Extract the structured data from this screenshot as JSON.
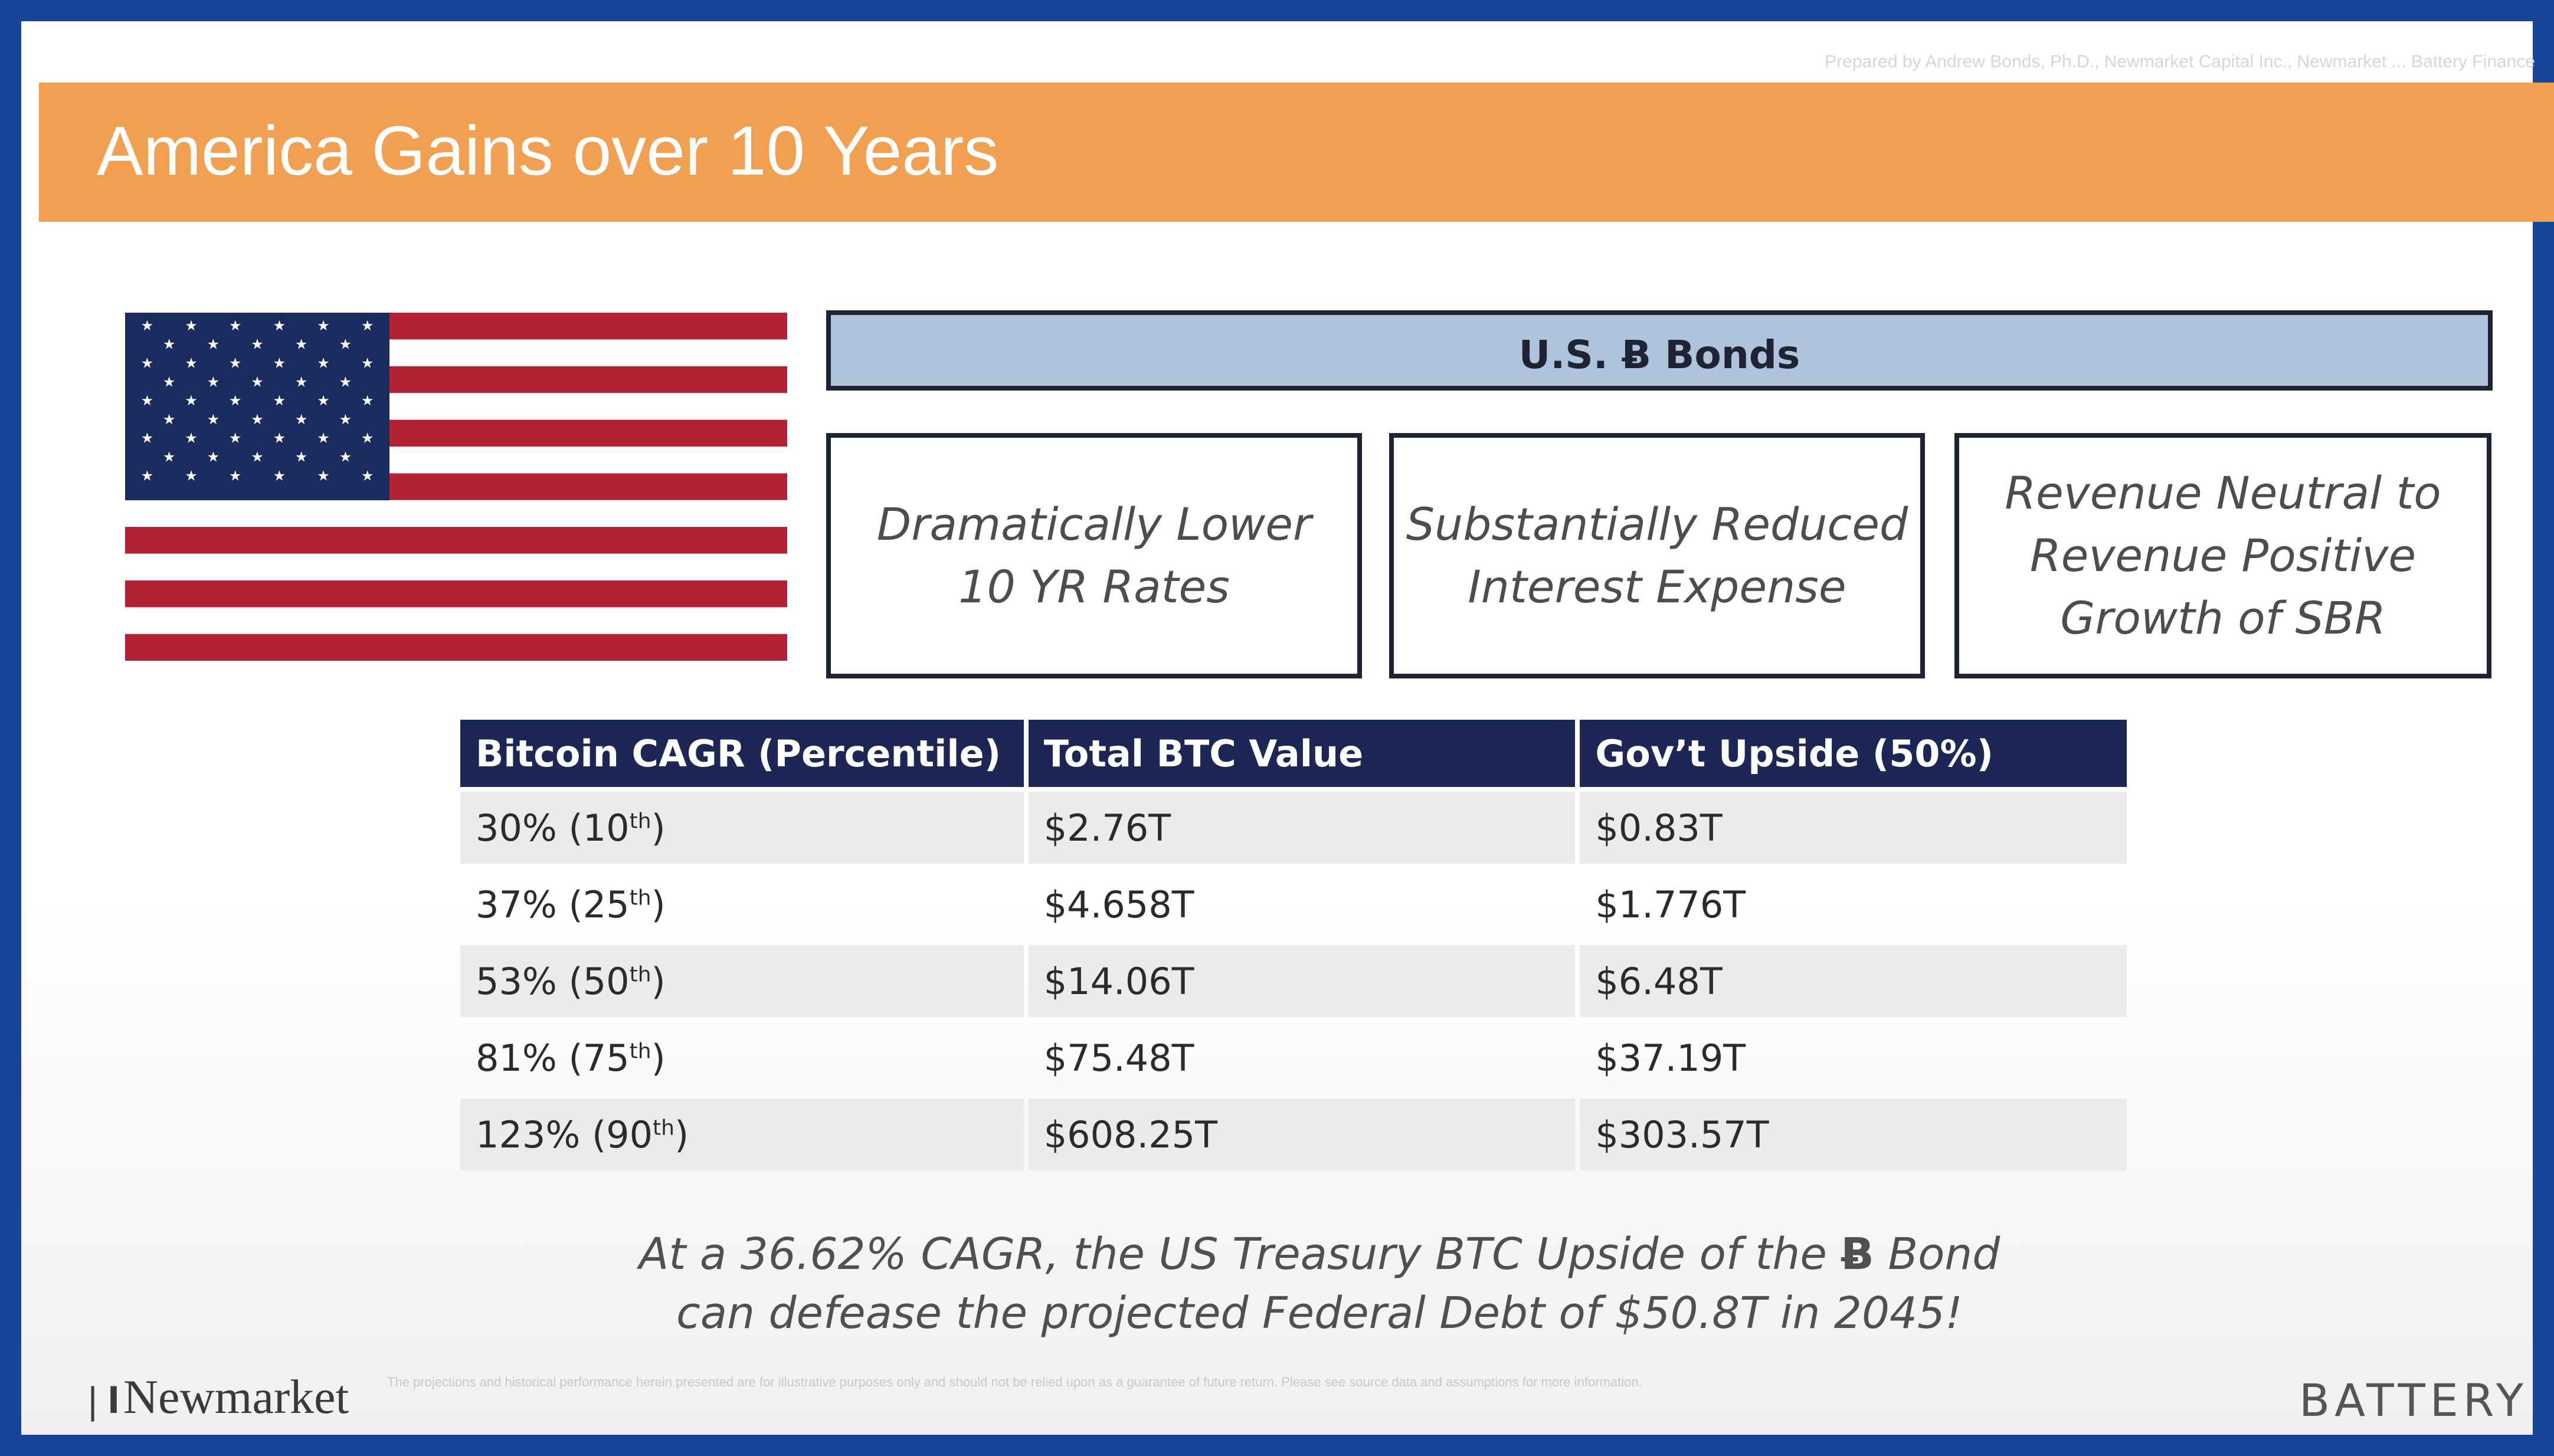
{
  "slide": {
    "title": "America Gains over 10 Years",
    "top_note": "Prepared by Andrew Bonds, Ph.D., Newmarket Capital Inc., Newmarket ... Battery Finance"
  },
  "colors": {
    "frame": "#16459a",
    "title_bar": "#f0a050",
    "bonds_header_fill": "#afc3db",
    "table_header": "#1c2756",
    "flag_red": "#b22234",
    "flag_blue": "#1a2c5e"
  },
  "flag": {
    "icon": "us-flag-icon"
  },
  "bonds": {
    "title": "U.S. Ƀ Bonds",
    "benefits": [
      "Dramatically Lower 10 YR Rates",
      "Substantially Reduced Interest Expense",
      "Revenue Neutral to Revenue Positive Growth of SBR"
    ]
  },
  "table": {
    "headers": [
      "Bitcoin CAGR (Percentile)",
      "Total BTC Value",
      "Gov’t Upside (50%)"
    ],
    "rows": [
      {
        "cagr": "30% (10",
        "sup": "th",
        "close": ")",
        "total": "$2.76T",
        "upside": "$0.83T"
      },
      {
        "cagr": "37% (25",
        "sup": "th",
        "close": ")",
        "total": "$4.658T",
        "upside": "$1.776T"
      },
      {
        "cagr": "53% (50",
        "sup": "th",
        "close": ")",
        "total": "$14.06T",
        "upside": "$6.48T"
      },
      {
        "cagr": "81% (75",
        "sup": "th",
        "close": ")",
        "total": "$75.48T",
        "upside": "$37.19T"
      },
      {
        "cagr": "123% (90",
        "sup": "th",
        "close": ")",
        "total": "$608.25T",
        "upside": "$303.57T"
      }
    ]
  },
  "conclusion": {
    "line1_pre": "At a 36.62% CAGR, the US Treasury BTC Upside of the ",
    "bond_symbol": "Ƀ",
    "line1_post": " Bond",
    "line2": "can defease the projected Federal Debt of $50.8T in 2045!"
  },
  "footer": {
    "left_logo_mark": "❘l",
    "left_logo_text": "Newmarket",
    "disclaimer": "The projections and historical performance herein presented are for illustrative purposes only and should not be relied upon as a guarantee of future return. Please see source data and assumptions for more information.",
    "right_logo_text": "BATTERY"
  }
}
